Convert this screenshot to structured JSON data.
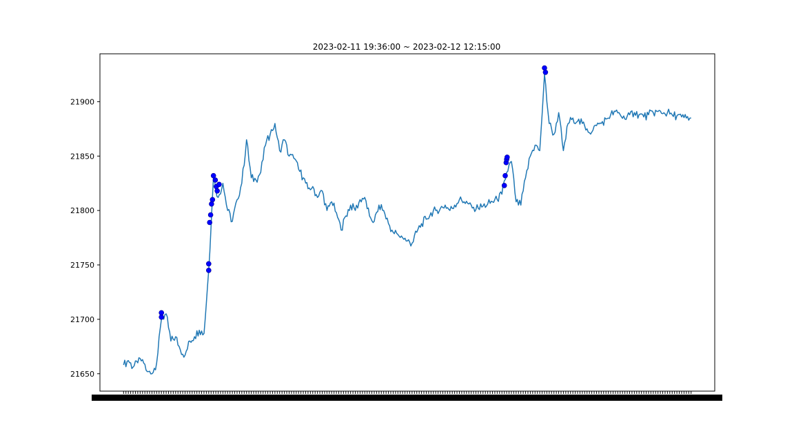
{
  "chart_data": {
    "type": "line",
    "title": "2023-02-11 19:36:00 ~ 2023-02-12 12:15:00",
    "xlabel": "",
    "ylabel": "",
    "ylim": [
      21634,
      21944
    ],
    "xlim": [
      -5,
      125
    ],
    "y_ticks": [
      21650,
      21700,
      21750,
      21800,
      21850,
      21900
    ],
    "grid": false,
    "x_tick_labels_note": "dense overlapping timestamp labels render as a solid black band",
    "series": [
      {
        "color": "#1f77b4",
        "x": [
          0,
          1,
          2,
          3,
          4,
          5,
          6,
          7,
          8,
          9,
          10,
          11,
          12,
          13,
          14,
          15,
          16,
          17,
          18,
          19,
          20,
          21,
          22,
          23,
          24,
          25,
          26,
          27,
          28,
          29,
          30,
          31,
          32,
          33,
          34,
          35,
          36,
          37,
          38,
          39,
          40,
          41,
          42,
          43,
          44,
          45,
          46,
          47,
          48,
          49,
          50,
          51,
          52,
          53,
          54,
          55,
          56,
          57,
          58,
          59,
          60,
          61,
          62,
          63,
          64,
          65,
          66,
          67,
          68,
          69,
          70,
          71,
          72,
          73,
          74,
          75,
          76,
          77,
          78,
          79,
          80,
          81,
          82,
          83,
          84,
          85,
          86,
          87,
          88,
          89,
          90,
          91,
          92,
          93,
          94,
          95,
          96,
          97,
          98,
          99,
          100,
          101,
          102,
          103,
          104,
          105,
          106,
          107,
          108,
          109,
          110,
          111,
          112,
          113,
          114,
          115,
          116,
          117,
          118,
          119,
          120
        ],
        "values": [
          21658,
          21662,
          21656,
          21660,
          21663,
          21652,
          21650,
          21660,
          21700,
          21705,
          21680,
          21684,
          21672,
          21667,
          21680,
          21684,
          21690,
          21687,
          21745,
          21830,
          21812,
          21825,
          21800,
          21790,
          21810,
          21825,
          21865,
          21830,
          21828,
          21835,
          21860,
          21870,
          21880,
          21855,
          21865,
          21850,
          21848,
          21838,
          21830,
          21820,
          21822,
          21812,
          21818,
          21800,
          21808,
          21798,
          21782,
          21795,
          21805,
          21800,
          21810,
          21812,
          21795,
          21790,
          21805,
          21800,
          21788,
          21780,
          21778,
          21775,
          21772,
          21770,
          21780,
          21788,
          21792,
          21798,
          21800,
          21802,
          21805,
          21800,
          21805,
          21810,
          21808,
          21806,
          21803,
          21802,
          21804,
          21806,
          21808,
          21810,
          21815,
          21835,
          21845,
          21808,
          21805,
          21830,
          21850,
          21860,
          21855,
          21925,
          21880,
          21870,
          21890,
          21855,
          21880,
          21885,
          21882,
          21880,
          21875,
          21872,
          21878,
          21880,
          21884,
          21888,
          21891,
          21888,
          21884,
          21888,
          21890,
          21888,
          21886,
          21888,
          21890,
          21891,
          21889,
          21890,
          21888,
          21887,
          21886,
          21885,
          21885
        ]
      }
    ],
    "markers": {
      "color": "#0000ff",
      "points": [
        {
          "x": 8,
          "y": 21702
        },
        {
          "x": 8,
          "y": 21706
        },
        {
          "x": 18,
          "y": 21745
        },
        {
          "x": 18,
          "y": 21751
        },
        {
          "x": 18.2,
          "y": 21789
        },
        {
          "x": 18.4,
          "y": 21796
        },
        {
          "x": 18.6,
          "y": 21806
        },
        {
          "x": 18.8,
          "y": 21810
        },
        {
          "x": 19,
          "y": 21832
        },
        {
          "x": 19.4,
          "y": 21828
        },
        {
          "x": 19.6,
          "y": 21822
        },
        {
          "x": 19.8,
          "y": 21818
        },
        {
          "x": 20.2,
          "y": 21824
        },
        {
          "x": 80.5,
          "y": 21823
        },
        {
          "x": 80.7,
          "y": 21832
        },
        {
          "x": 80.9,
          "y": 21844
        },
        {
          "x": 81.0,
          "y": 21847
        },
        {
          "x": 81.1,
          "y": 21849
        },
        {
          "x": 89,
          "y": 21931
        },
        {
          "x": 89.2,
          "y": 21927
        }
      ]
    }
  }
}
